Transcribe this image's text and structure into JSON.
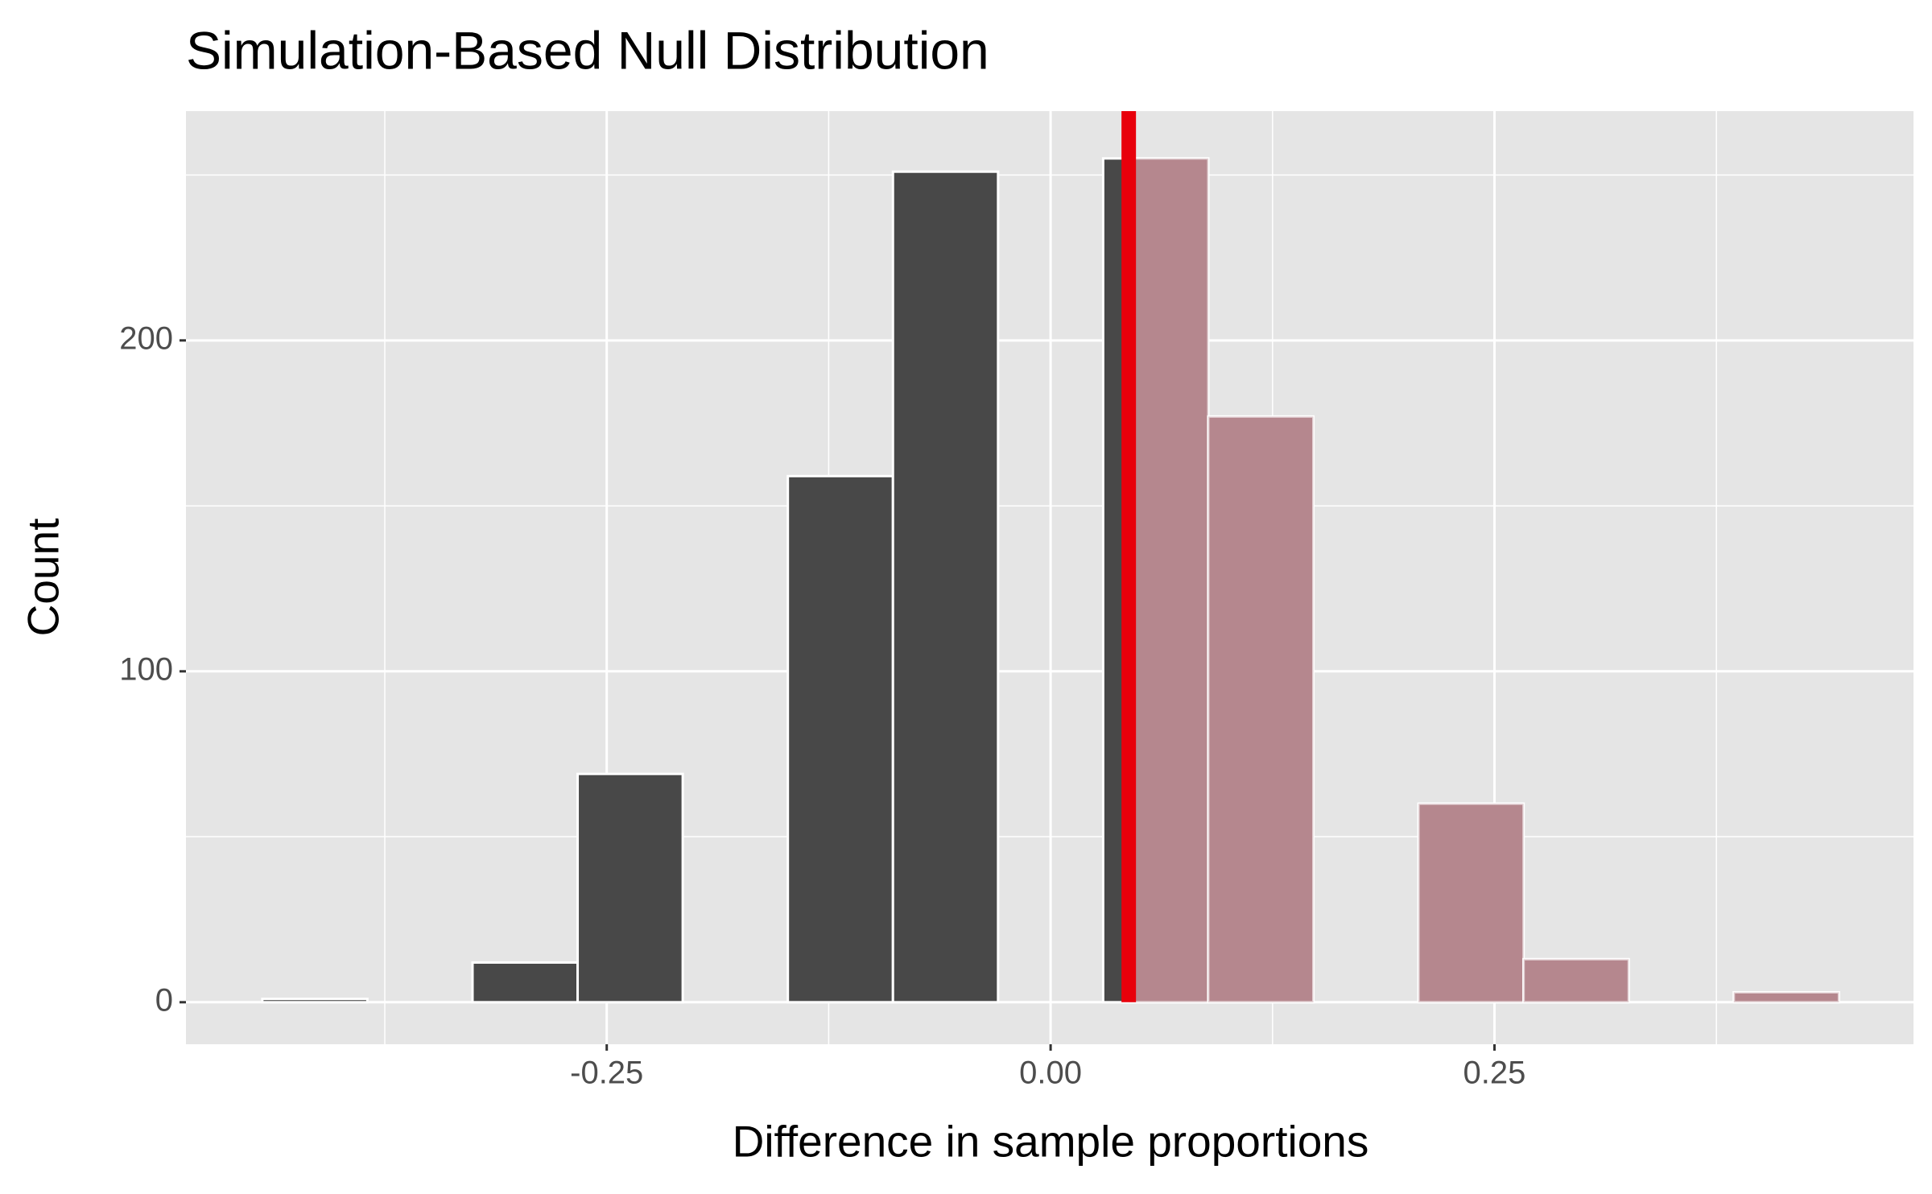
{
  "chart_data": {
    "type": "histogram",
    "title": "Simulation-Based Null Distribution",
    "x_label": "Difference in sample proportions",
    "y_label": "Count",
    "bins": [
      -0.444,
      -0.3848,
      -0.3256,
      -0.2664,
      -0.2072,
      -0.148,
      -0.0888,
      -0.0296,
      0.0296,
      0.0888,
      0.148,
      0.2072,
      0.2664,
      0.3256,
      0.3848,
      0.444
    ],
    "values": [
      1,
      0,
      12,
      69,
      0,
      159,
      251,
      0,
      255,
      177,
      0,
      60,
      13,
      0,
      3
    ],
    "color": "#484848",
    "obs_stat": 0.044,
    "obs_stat_color": "#e8000b",
    "shade_direction": "right",
    "shade_color": "#b5878e",
    "xlim": [
      -0.487,
      0.486
    ],
    "ylim": [
      -12.7,
      269.3
    ],
    "xticks": [
      {
        "value": -0.25,
        "label": "-0.25"
      },
      {
        "value": 0,
        "label": "0.00"
      },
      {
        "value": 0.25,
        "label": "0.25"
      }
    ],
    "yticks": [
      0,
      100,
      200
    ],
    "xminor": [
      -0.375,
      -0.125,
      0.125,
      0.375
    ],
    "yminor": [
      50,
      150,
      250
    ],
    "grid": true
  }
}
